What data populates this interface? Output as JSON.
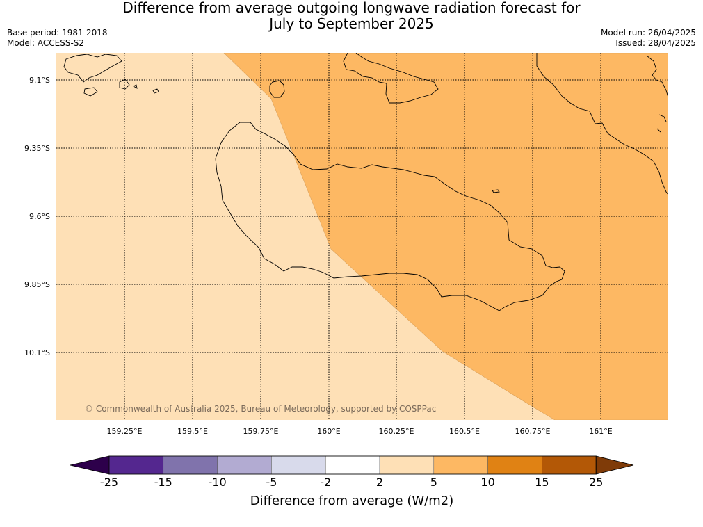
{
  "title_line1": "Difference from average outgoing longwave radiation forecast for",
  "title_line2": "July to September 2025",
  "base_period": "Base period: 1981-2018",
  "model": "Model: ACCESS-S2",
  "model_run": "Model run: 26/04/2025",
  "issued": "Issued: 28/04/2025",
  "copyright": "© Commonwealth of Australia 2025, Bureau of Meteorology, supported by COSPPac",
  "lat_labels": [
    "9.1°S",
    "9.35°S",
    "9.6°S",
    "9.85°S",
    "10.1°S"
  ],
  "lon_labels": [
    "159.25°E",
    "159.5°E",
    "159.75°E",
    "160°E",
    "160.25°E",
    "160.5°E",
    "160.75°E",
    "161°E"
  ],
  "colorbar": {
    "title": "Difference from average (W/m2)",
    "ticks": [
      "-25",
      "-15",
      "-10",
      "-5",
      "-2",
      "2",
      "5",
      "10",
      "15",
      "25"
    ],
    "colors": [
      "#54278f",
      "#8073ac",
      "#b2abd2",
      "#d8daeb",
      "#ffffff",
      "#fee0b6",
      "#fdb863",
      "#e08214",
      "#b35806"
    ],
    "under_color": "#2d004b",
    "over_color": "#7f3b08"
  },
  "map_colors": {
    "light_band": "#fee0b6",
    "orange_band": "#fdb863"
  }
}
